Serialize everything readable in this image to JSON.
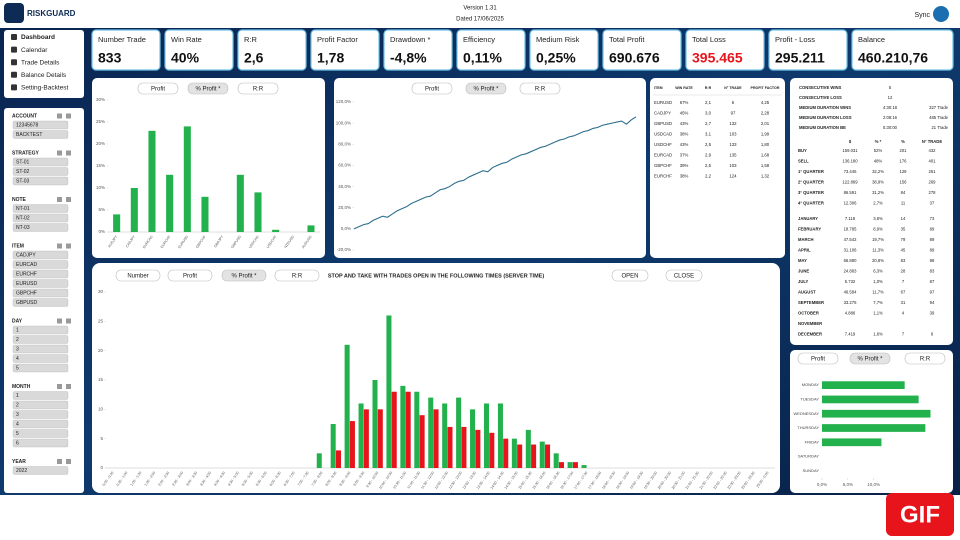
{
  "header": {
    "logo": "RISKGUARD",
    "version": "Version 1.31",
    "dated": "Dated 17/06/2025",
    "sync": "Sync"
  },
  "menu": [
    "Dashboard",
    "Calendar",
    "Trade Details",
    "Balance Details",
    "Setting-Backtest"
  ],
  "filters": [
    {
      "title": "ACCOUNT",
      "items": [
        "12345678",
        "BACKTEST"
      ]
    },
    {
      "title": "STRATEGY",
      "items": [
        "ST-01",
        "ST-02",
        "ST-03"
      ]
    },
    {
      "title": "NOTE",
      "items": [
        "NT-01",
        "NT-02",
        "NT-03"
      ]
    },
    {
      "title": "ITEM",
      "items": [
        "CADJPY",
        "EURCAD",
        "EURCHF",
        "EURUSD",
        "GBPCHF",
        "GBPUSD"
      ]
    },
    {
      "title": "DAY",
      "items": [
        "1",
        "2",
        "3",
        "4",
        "5"
      ]
    },
    {
      "title": "MONTH",
      "items": [
        "1",
        "2",
        "3",
        "4",
        "5",
        "6"
      ]
    },
    {
      "title": "YEAR",
      "items": [
        "2022"
      ]
    }
  ],
  "kpis": [
    {
      "label": "Number Trade",
      "value": "833"
    },
    {
      "label": "Win Rate",
      "value": "40%"
    },
    {
      "label": "R:R",
      "value": "2,6"
    },
    {
      "label": "Profit Factor",
      "value": "1,78"
    },
    {
      "label": "Drawdown *",
      "value": "-4,8%"
    },
    {
      "label": "Efficiency",
      "value": "0,11%"
    },
    {
      "label": "Medium Risk",
      "value": "0,25%"
    },
    {
      "label": "Total Profit",
      "value": "690.676"
    },
    {
      "label": "Total Loss",
      "value": "395.465",
      "color": "#e8141b"
    },
    {
      "label": "Profit - Loss",
      "value": "295.211"
    },
    {
      "label": "Balance",
      "value": "460.210,76"
    }
  ],
  "chart_data": [
    {
      "type": "bar",
      "buttons": [
        "Profit",
        "% Profit *",
        "R:R"
      ],
      "color": "#22b14c",
      "categories": [
        "AUDJPY",
        "CADJPY",
        "EURCAD",
        "EURCHF",
        "EURUSD",
        "GBPCHF",
        "GBPJPY",
        "GBPUSD",
        "USDCAD",
        "USDCHF",
        "NZDUSD",
        "AUDUSD"
      ],
      "values": [
        4,
        10,
        23,
        13,
        24,
        8,
        0,
        13,
        9,
        0.5,
        0,
        1.5
      ],
      "ylim": [
        0,
        30
      ],
      "yticks": [
        {
          "value": 0,
          "label": "0%"
        },
        {
          "value": 5,
          "label": "5%"
        },
        {
          "value": 10,
          "label": "10%"
        },
        {
          "value": 15,
          "label": "15%"
        },
        {
          "value": 20,
          "label": "20%"
        },
        {
          "value": 25,
          "label": "25%"
        },
        {
          "value": 30,
          "label": "30%"
        }
      ],
      "grid": false
    },
    {
      "type": "line",
      "buttons": [
        "Profit",
        "% Profit *",
        "R:R"
      ],
      "color": "#2e6f8e",
      "values": [
        0,
        2,
        4,
        5,
        8,
        10,
        12,
        11,
        14,
        17,
        19,
        21,
        24,
        26,
        28,
        30,
        31,
        34,
        37,
        38,
        40,
        43,
        45,
        46,
        49,
        51,
        53,
        55,
        54,
        58,
        60,
        62,
        63,
        66,
        68,
        70,
        71,
        73,
        75,
        77,
        78,
        80,
        82,
        84,
        85,
        87,
        88,
        90,
        92,
        93,
        95,
        96,
        98,
        99,
        100,
        101,
        102,
        99,
        103,
        106
      ],
      "ylim": [
        -20,
        120
      ],
      "yticks": [
        {
          "value": -20,
          "label": "-20,0%"
        },
        {
          "value": 0,
          "label": "0,0%"
        },
        {
          "value": 20,
          "label": "20,0%"
        },
        {
          "value": 40,
          "label": "40,0%"
        },
        {
          "value": 60,
          "label": "60,0%"
        },
        {
          "value": 80,
          "label": "80,0%"
        },
        {
          "value": 100,
          "label": "100,0%"
        },
        {
          "value": 120,
          "label": "120,0%"
        }
      ],
      "grid": false
    },
    {
      "type": "bar",
      "title": "STOP AND TAKE WITH TRADES OPEN IN THE FOLLOWING TIMES (SERVER TIME)",
      "buttons": [
        "Number",
        "Profit",
        "% Profit *",
        "R:R"
      ],
      "actions": [
        "OPEN",
        "CLOSE"
      ],
      "categories": [
        "0:00 - 0:30",
        "0:30 - 1:00",
        "1:00 - 1:30",
        "1:30 - 2:00",
        "2:00 - 2:30",
        "2:30 - 3:00",
        "3:00 - 3:30",
        "3:30 - 4:00",
        "4:00 - 4:30",
        "4:30 - 5:00",
        "5:00 - 5:30",
        "5:30 - 6:00",
        "6:00 - 6:30",
        "6:30 - 7:00",
        "7:00 - 7:30",
        "7:30 - 8:00",
        "8:00 - 8:30",
        "8:30 - 9:00",
        "9:00 - 9:30",
        "9:30 - 10:00",
        "10:00 - 10:30",
        "10:30 - 11:00",
        "11:00 - 11:30",
        "11:30 - 12:00",
        "12:00 - 12:30",
        "12:30 - 13:00",
        "13:00 - 13:30",
        "13:30 - 14:00",
        "14:00 - 14:30",
        "14:30 - 15:00",
        "15:00 - 15:30",
        "15:30 - 16:00",
        "16:00 - 16:30",
        "16:30 - 17:00",
        "17:00 - 17:30",
        "17:30 - 18:00",
        "18:00 - 18:30",
        "18:30 - 19:00",
        "19:00 - 19:30",
        "19:30 - 20:00",
        "20:00 - 20:30",
        "20:30 - 21:00",
        "21:00 - 21:30",
        "21:30 - 22:00",
        "22:00 - 22:30",
        "22:30 - 23:00",
        "23:00 - 23:30",
        "23:30 - 0:00"
      ],
      "series": [
        {
          "color": "#22b14c",
          "values": [
            0,
            0,
            0,
            0,
            0,
            0,
            0,
            0,
            0,
            0,
            0,
            0,
            0,
            0,
            0,
            2.5,
            7.5,
            21,
            11,
            15,
            26,
            14,
            13,
            12,
            11,
            12,
            10,
            11,
            11,
            5,
            6.5,
            4.5,
            2.5,
            1,
            0.5,
            0,
            0,
            0,
            0,
            0,
            0,
            0,
            0,
            0,
            0,
            0,
            0,
            0
          ]
        },
        {
          "color": "#e8141b",
          "values": [
            0,
            0,
            0,
            0,
            0,
            0,
            0,
            0,
            0,
            0,
            0,
            0,
            0,
            0,
            0,
            0,
            3,
            8,
            10,
            10,
            13,
            13,
            9,
            10,
            7,
            7,
            6.5,
            6,
            5,
            4,
            4,
            4,
            1,
            1,
            0,
            0,
            0,
            0,
            0,
            0,
            0,
            0,
            0,
            0,
            0,
            0,
            0,
            0
          ]
        }
      ],
      "ylim": [
        0,
        30
      ],
      "yticks": [
        0,
        5,
        10,
        15,
        20,
        25,
        30
      ],
      "grid": false
    },
    {
      "type": "barh",
      "buttons": [
        "Profit",
        "% Profit *",
        "R:R"
      ],
      "color": "#22b14c",
      "categories": [
        "MONDAY",
        "TUESDAY",
        "WEDNESDAY",
        "THURSDAY",
        "FRIDAY",
        "SATURDAY",
        "SUNDAY"
      ],
      "values": [
        16,
        18.7,
        21,
        20,
        11.5,
        0,
        0
      ],
      "xlim": [
        0,
        24
      ],
      "xticks": [
        {
          "value": 0,
          "label": "0,0%"
        },
        {
          "value": 5,
          "label": "5,0%"
        },
        {
          "value": 10,
          "label": "10,0%"
        }
      ]
    }
  ],
  "pair_table": {
    "columns": [
      "ITEM",
      "WIN RATE",
      "R:R",
      "N° TRADE",
      "PROFIT FACTOR"
    ],
    "rows": [
      [
        "EURUSD",
        "67%",
        "2,1",
        "6",
        "4,25"
      ],
      [
        "CADJPY",
        "45%",
        "3,0",
        "97",
        "2,28"
      ],
      [
        "GBPUSD",
        "43%",
        "2,7",
        "132",
        "2,01"
      ],
      [
        "USDCAD",
        "38%",
        "3,1",
        "103",
        "1,99"
      ],
      [
        "USDCHF",
        "43%",
        "2,5",
        "133",
        "1,80"
      ],
      [
        "EURCAD",
        "37%",
        "2,9",
        "135",
        "1,68"
      ],
      [
        "GBPCHF",
        "39%",
        "2,5",
        "103",
        "1,58"
      ],
      [
        "EURCHF",
        "38%",
        "2,2",
        "124",
        "1,32"
      ]
    ]
  },
  "stats": {
    "summary": [
      [
        "CONSECUTIVE WINS",
        "5"
      ],
      [
        "CONSECUTIVE LOSS",
        "12"
      ],
      [
        "MEDIUM DURATION WINS",
        "4:30:18",
        "327 Trade"
      ],
      [
        "MEDIUM DURATION LOSS",
        "2:08:16",
        "485 Trade"
      ],
      [
        "MEDIUM DURATION BE",
        "5:30:00",
        "21 Trade"
      ]
    ],
    "columns": [
      "$",
      "% *",
      "%",
      "N° TRADE"
    ],
    "rows": [
      [
        "BUY",
        "159.031",
        "52%",
        "201",
        "432"
      ],
      [
        "SELL",
        "136.180",
        "48%",
        "176",
        "401"
      ],
      [
        "1° QUARTER",
        "73.445",
        "32,2%",
        "129",
        "251"
      ],
      [
        "2° QUARTER",
        "122.869",
        "38,9%",
        "156",
        "269"
      ],
      [
        "3° QUARTER",
        "86.591",
        "31,2%",
        "84",
        "278"
      ],
      [
        "4° QUARTER",
        "12.306",
        "2,7%",
        "11",
        "37"
      ],
      [
        "JANUARY",
        "7.118",
        "3,6%",
        "14",
        "73"
      ],
      [
        "FEBRUARY",
        "18.785",
        "8,9%",
        "35",
        "89"
      ],
      [
        "MARCH",
        "47.542",
        "19,7%",
        "79",
        "89"
      ],
      [
        "APRIL",
        "31.106",
        "11,3%",
        "45",
        "89"
      ],
      [
        "MAY",
        "66.880",
        "20,8%",
        "83",
        "88"
      ],
      [
        "JUNE",
        "24.883",
        "6,3%",
        "28",
        "83"
      ],
      [
        "JULY",
        "5.732",
        "1,0%",
        "7",
        "87"
      ],
      [
        "AUGUST",
        "46.584",
        "11,7%",
        "67",
        "97"
      ],
      [
        "SEPTEMBER",
        "33.275",
        "7,7%",
        "31",
        "94"
      ],
      [
        "OCTOBER",
        "4.886",
        "1,1%",
        "4",
        "39"
      ],
      [
        "NOVEMBER"
      ],
      [
        "DECEMBER",
        "7.419",
        "1,6%",
        "7",
        "6"
      ]
    ]
  },
  "badge": "GIF"
}
